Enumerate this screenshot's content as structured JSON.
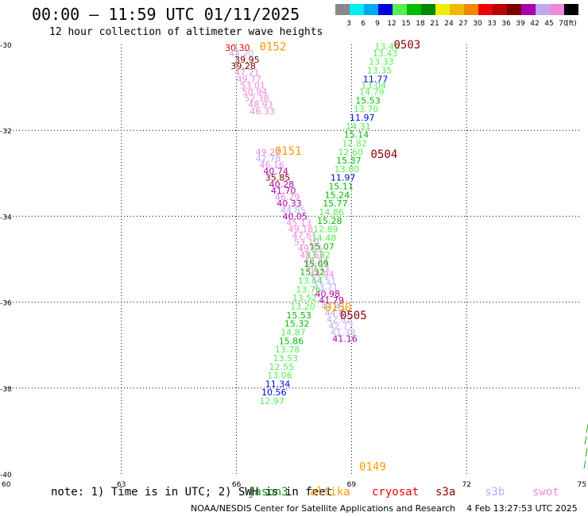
{
  "title": "00:00 – 11:59 UTC 01/11/2025",
  "subtitle": "12 hour collection of altimeter wave heights",
  "footer": {
    "center": "NOAA/NESDIS Center for Satellite Applications and Research",
    "timestamp": "4 Feb 13:27:53 UTC 2025"
  },
  "note": "note: 1) Time is in UTC; 2) SWH is in feet",
  "legend_missions": [
    {
      "name": "jason3",
      "color": "#1e8c1e"
    },
    {
      "name": "altika",
      "color": "#ff9900"
    },
    {
      "name": "cryosat",
      "color": "#ee0000"
    },
    {
      "name": "s3a",
      "color": "#880000"
    },
    {
      "name": "s3b",
      "color": "#bbaaee"
    },
    {
      "name": "swot",
      "color": "#ee88dd"
    }
  ],
  "colorbar": {
    "labels": [
      "3",
      "6",
      "9",
      "12",
      "15",
      "18",
      "21",
      "24",
      "27",
      "30",
      "33",
      "36",
      "39",
      "42",
      "45",
      "70",
      "(ft)"
    ],
    "colors": [
      "#888888",
      "#00eeee",
      "#00aaee",
      "#0000dd",
      "#55ee55",
      "#00bb00",
      "#008800",
      "#eeee00",
      "#eebb00",
      "#ee8800",
      "#ee0000",
      "#bb0000",
      "#770000",
      "#aa00aa",
      "#bbaaee",
      "#ee88dd",
      "#000000"
    ]
  },
  "chart_data": {
    "type": "scatter",
    "title": "00:00 – 11:59 UTC 01/11/2025",
    "subtitle": "12 hour collection of altimeter wave heights",
    "xlabel": "",
    "ylabel": "",
    "xlim": [
      60,
      75
    ],
    "ylim": [
      -40,
      -30
    ],
    "xticks": [
      60,
      63,
      66,
      69,
      72,
      75
    ],
    "yticks": [
      -30,
      -32,
      -34,
      -36,
      -38,
      -40
    ],
    "grid": true,
    "time_labels": [
      {
        "text": "0152",
        "x": 66.6,
        "y": -30.05,
        "color": "#ff9900"
      },
      {
        "text": "0151",
        "x": 67.0,
        "y": -32.48,
        "color": "#ff9900"
      },
      {
        "text": "0150",
        "x": 68.3,
        "y": -36.12,
        "color": "#ff9900"
      },
      {
        "text": "0149",
        "x": 69.2,
        "y": -39.82,
        "color": "#ff9900"
      },
      {
        "text": "0503",
        "x": 70.1,
        "y": -30.0,
        "color": "#880000"
      },
      {
        "text": "0504",
        "x": 69.5,
        "y": -32.55,
        "color": "#880000"
      },
      {
        "text": "0505",
        "x": 68.7,
        "y": -36.3,
        "color": "#880000"
      }
    ],
    "series": [
      {
        "name": "altika",
        "values": [
          {
            "x": 65.7,
            "y": -30.07,
            "v": "30.30",
            "c": "#ee0000"
          },
          {
            "x": 65.8,
            "y": -30.2,
            "v": "43.20",
            "c": "#bbaaee"
          },
          {
            "x": 65.95,
            "y": -30.35,
            "v": "39.95",
            "c": "#770000"
          },
          {
            "x": 65.85,
            "y": -30.5,
            "v": "39.28",
            "c": "#770000"
          },
          {
            "x": 65.95,
            "y": -30.65,
            "v": "47.21",
            "c": "#ee88dd"
          },
          {
            "x": 66.0,
            "y": -30.8,
            "v": "49.77",
            "c": "#ee88dd"
          },
          {
            "x": 66.1,
            "y": -30.95,
            "v": "53.01",
            "c": "#ee88dd"
          },
          {
            "x": 66.15,
            "y": -31.1,
            "v": "50.94",
            "c": "#ee88dd"
          },
          {
            "x": 66.2,
            "y": -31.25,
            "v": "52.38",
            "c": "#ee88dd"
          },
          {
            "x": 66.3,
            "y": -31.4,
            "v": "48.93",
            "c": "#ee88dd"
          },
          {
            "x": 66.35,
            "y": -31.55,
            "v": "46.33",
            "c": "#ee88dd"
          },
          {
            "x": 66.5,
            "y": -32.5,
            "v": "49.27",
            "c": "#ee88dd"
          },
          {
            "x": 66.5,
            "y": -32.65,
            "v": "42.78",
            "c": "#bbaaee"
          },
          {
            "x": 66.6,
            "y": -32.8,
            "v": "46.16",
            "c": "#ee88dd"
          },
          {
            "x": 66.7,
            "y": -32.95,
            "v": "40.74",
            "c": "#aa00aa"
          },
          {
            "x": 66.75,
            "y": -33.1,
            "v": "35.85",
            "c": "#770000"
          },
          {
            "x": 66.85,
            "y": -33.25,
            "v": "40.28",
            "c": "#aa00aa"
          },
          {
            "x": 66.9,
            "y": -33.4,
            "v": "41.70",
            "c": "#aa00aa"
          },
          {
            "x": 67.0,
            "y": -33.55,
            "v": "46.29",
            "c": "#ee88dd"
          },
          {
            "x": 67.05,
            "y": -33.7,
            "v": "40.33",
            "c": "#aa00aa"
          },
          {
            "x": 67.15,
            "y": -33.85,
            "v": "44.85",
            "c": "#bbaaee"
          },
          {
            "x": 67.2,
            "y": -34.0,
            "v": "40.05",
            "c": "#aa00aa"
          },
          {
            "x": 67.3,
            "y": -34.15,
            "v": "45.13",
            "c": "#ee88dd"
          },
          {
            "x": 67.35,
            "y": -34.3,
            "v": "49.18",
            "c": "#ee88dd"
          },
          {
            "x": 67.45,
            "y": -34.45,
            "v": "47.61",
            "c": "#ee88dd"
          },
          {
            "x": 67.5,
            "y": -34.6,
            "v": "53.10",
            "c": "#ee88dd"
          },
          {
            "x": 67.6,
            "y": -34.75,
            "v": "49.51",
            "c": "#ee88dd"
          },
          {
            "x": 67.65,
            "y": -34.9,
            "v": "48.67",
            "c": "#ee88dd"
          },
          {
            "x": 67.75,
            "y": -35.05,
            "v": "48.24",
            "c": "#ee88dd"
          },
          {
            "x": 67.8,
            "y": -35.2,
            "v": "50.11",
            "c": "#ee88dd"
          },
          {
            "x": 67.9,
            "y": -35.35,
            "v": "44.94",
            "c": "#ee88dd"
          },
          {
            "x": 67.95,
            "y": -35.5,
            "v": "44.51",
            "c": "#bbaaee"
          },
          {
            "x": 68.0,
            "y": -35.65,
            "v": "43.71",
            "c": "#bbaaee"
          },
          {
            "x": 68.05,
            "y": -35.8,
            "v": "40.98",
            "c": "#aa00aa"
          },
          {
            "x": 68.15,
            "y": -35.95,
            "v": "41.79",
            "c": "#aa00aa"
          },
          {
            "x": 68.2,
            "y": -36.1,
            "v": "44.41",
            "c": "#bbaaee"
          },
          {
            "x": 68.3,
            "y": -36.25,
            "v": "44.80",
            "c": "#bbaaee"
          },
          {
            "x": 68.35,
            "y": -36.4,
            "v": "42.62",
            "c": "#bbaaee"
          },
          {
            "x": 68.4,
            "y": -36.55,
            "v": "42.77",
            "c": "#bbaaee"
          },
          {
            "x": 68.45,
            "y": -36.7,
            "v": "41.38",
            "c": "#bbaaee"
          },
          {
            "x": 68.5,
            "y": -36.85,
            "v": "41.16",
            "c": "#aa00aa"
          }
        ]
      },
      {
        "name": "s3a",
        "values": [
          {
            "x": 69.6,
            "y": -30.05,
            "v": "13.45",
            "c": "#55ee55"
          },
          {
            "x": 69.55,
            "y": -30.2,
            "v": "13.43",
            "c": "#55ee55"
          },
          {
            "x": 69.45,
            "y": -30.4,
            "v": "13.33",
            "c": "#55ee55"
          },
          {
            "x": 69.4,
            "y": -30.6,
            "v": "13.35",
            "c": "#55ee55"
          },
          {
            "x": 69.3,
            "y": -30.8,
            "v": "11.77",
            "c": "#0000dd"
          },
          {
            "x": 69.25,
            "y": -30.95,
            "v": "13.04",
            "c": "#55ee55"
          },
          {
            "x": 69.2,
            "y": -31.1,
            "v": "14.79",
            "c": "#55ee55"
          },
          {
            "x": 69.1,
            "y": -31.3,
            "v": "15.53",
            "c": "#00bb00"
          },
          {
            "x": 69.05,
            "y": -31.5,
            "v": "13.70",
            "c": "#55ee55"
          },
          {
            "x": 68.95,
            "y": -31.7,
            "v": "11.97",
            "c": "#0000dd"
          },
          {
            "x": 68.85,
            "y": -31.9,
            "v": "14.31",
            "c": "#55ee55"
          },
          {
            "x": 68.8,
            "y": -32.1,
            "v": "15.14",
            "c": "#00bb00"
          },
          {
            "x": 68.75,
            "y": -32.3,
            "v": "12.82",
            "c": "#55ee55"
          },
          {
            "x": 68.65,
            "y": -32.5,
            "v": "12.60",
            "c": "#55ee55"
          },
          {
            "x": 68.6,
            "y": -32.7,
            "v": "15.37",
            "c": "#00bb00"
          },
          {
            "x": 68.55,
            "y": -32.9,
            "v": "13.80",
            "c": "#55ee55"
          },
          {
            "x": 68.45,
            "y": -33.1,
            "v": "11.97",
            "c": "#0000dd"
          },
          {
            "x": 68.4,
            "y": -33.3,
            "v": "15.11",
            "c": "#00bb00"
          },
          {
            "x": 68.3,
            "y": -33.5,
            "v": "15.24",
            "c": "#00bb00"
          },
          {
            "x": 68.25,
            "y": -33.7,
            "v": "15.77",
            "c": "#00bb00"
          },
          {
            "x": 68.15,
            "y": -33.9,
            "v": "14.86",
            "c": "#55ee55"
          },
          {
            "x": 68.1,
            "y": -34.1,
            "v": "15.28",
            "c": "#00bb00"
          },
          {
            "x": 68.0,
            "y": -34.3,
            "v": "12.89",
            "c": "#55ee55"
          },
          {
            "x": 67.95,
            "y": -34.5,
            "v": "14.48",
            "c": "#55ee55"
          },
          {
            "x": 67.9,
            "y": -34.7,
            "v": "15.07",
            "c": "#00bb00"
          },
          {
            "x": 67.8,
            "y": -34.9,
            "v": "13.62",
            "c": "#55ee55"
          },
          {
            "x": 67.75,
            "y": -35.1,
            "v": "15.09",
            "c": "#00bb00"
          },
          {
            "x": 67.65,
            "y": -35.3,
            "v": "15.32",
            "c": "#00bb00"
          },
          {
            "x": 67.6,
            "y": -35.5,
            "v": "13.54",
            "c": "#55ee55"
          },
          {
            "x": 67.55,
            "y": -35.7,
            "v": "13.76",
            "c": "#55ee55"
          },
          {
            "x": 67.45,
            "y": -35.9,
            "v": "13.52",
            "c": "#55ee55"
          },
          {
            "x": 67.4,
            "y": -36.1,
            "v": "13.20",
            "c": "#55ee55"
          },
          {
            "x": 67.3,
            "y": -36.3,
            "v": "15.53",
            "c": "#00bb00"
          },
          {
            "x": 67.25,
            "y": -36.5,
            "v": "15.32",
            "c": "#00bb00"
          },
          {
            "x": 67.15,
            "y": -36.7,
            "v": "14.87",
            "c": "#55ee55"
          },
          {
            "x": 67.1,
            "y": -36.9,
            "v": "15.86",
            "c": "#00bb00"
          },
          {
            "x": 67.0,
            "y": -37.1,
            "v": "13.78",
            "c": "#55ee55"
          },
          {
            "x": 66.95,
            "y": -37.3,
            "v": "13.53",
            "c": "#55ee55"
          },
          {
            "x": 66.85,
            "y": -37.5,
            "v": "12.55",
            "c": "#55ee55"
          },
          {
            "x": 66.8,
            "y": -37.7,
            "v": "13.06",
            "c": "#55ee55"
          },
          {
            "x": 66.75,
            "y": -37.9,
            "v": "11.34",
            "c": "#0000dd"
          },
          {
            "x": 66.65,
            "y": -38.1,
            "v": "10.56",
            "c": "#0000dd"
          },
          {
            "x": 66.6,
            "y": -38.3,
            "v": "12.97",
            "c": "#55ee55"
          }
        ]
      }
    ]
  }
}
